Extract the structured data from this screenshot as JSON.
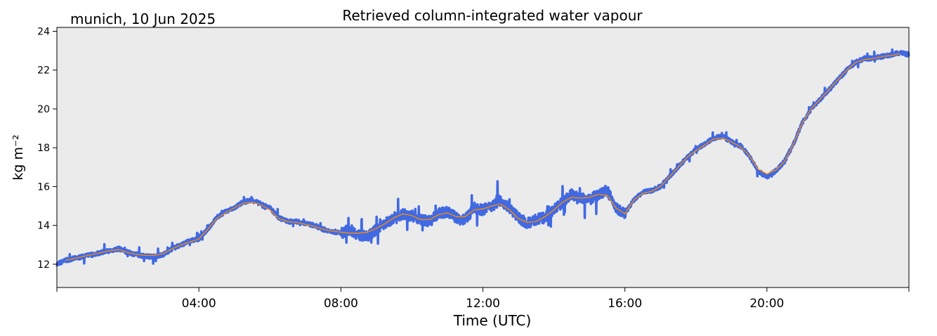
{
  "header": {
    "location_date": "munich, 10 Jun 2025",
    "title": "Retrieved column-integrated water vapour"
  },
  "colors": {
    "raw_series": "#4169e1",
    "smoothed_series": "#ff8c00",
    "plot_background": "#ebebeb"
  },
  "chart_data": {
    "type": "line",
    "title": "Retrieved column-integrated water vapour",
    "xlabel": "Time (UTC)",
    "ylabel": "kg m⁻²",
    "xlim": [
      0,
      24
    ],
    "ylim": [
      10.8,
      24.2
    ],
    "x_tick_labels": [
      "04:00",
      "08:00",
      "12:00",
      "16:00",
      "20:00"
    ],
    "x_tick_hours": [
      4,
      8,
      12,
      16,
      20
    ],
    "y_ticks": [
      12,
      14,
      16,
      18,
      20,
      22,
      24
    ],
    "grid": false,
    "series": [
      {
        "role": "raw retrieval",
        "x_hours": [
          0,
          0.25,
          0.5,
          0.75,
          1.0,
          1.25,
          1.5,
          1.75,
          2.0,
          2.25,
          2.5,
          2.75,
          3.0,
          3.25,
          3.5,
          3.75,
          4.0,
          4.25,
          4.5,
          4.75,
          5.0,
          5.25,
          5.5,
          5.75,
          6.0,
          6.25,
          6.5,
          6.75,
          7.0,
          7.25,
          7.5,
          7.75,
          8.0,
          8.25,
          8.5,
          8.75,
          9.0,
          9.25,
          9.5,
          9.75,
          10.0,
          10.25,
          10.5,
          10.75,
          11.0,
          11.25,
          11.5,
          11.75,
          12.0,
          12.25,
          12.5,
          12.75,
          13.0,
          13.25,
          13.5,
          13.75,
          14.0,
          14.25,
          14.5,
          14.75,
          15.0,
          15.25,
          15.5,
          15.75,
          16.0,
          16.25,
          16.5,
          16.75,
          17.0,
          17.25,
          17.5,
          17.75,
          18.0,
          18.25,
          18.5,
          18.75,
          19.0,
          19.25,
          19.5,
          19.75,
          20.0,
          20.25,
          20.5,
          20.75,
          21.0,
          21.25,
          21.5,
          21.75,
          22.0,
          22.25,
          22.5,
          22.75,
          23.0,
          23.25,
          23.5,
          23.75,
          24.0
        ],
        "values": [
          12.0,
          12.2,
          12.3,
          12.4,
          12.5,
          12.6,
          12.7,
          12.8,
          12.6,
          12.5,
          12.4,
          12.4,
          12.5,
          12.8,
          13.0,
          13.2,
          13.3,
          13.8,
          14.4,
          14.7,
          14.9,
          15.2,
          15.3,
          15.1,
          14.9,
          14.4,
          14.2,
          14.2,
          14.1,
          14.0,
          13.8,
          13.7,
          13.6,
          13.8,
          13.5,
          13.4,
          13.8,
          14.1,
          14.4,
          14.6,
          14.5,
          14.3,
          14.2,
          14.6,
          14.7,
          14.4,
          14.3,
          14.9,
          14.8,
          15.0,
          15.3,
          14.9,
          14.4,
          14.1,
          14.3,
          14.4,
          14.8,
          15.2,
          15.6,
          15.4,
          15.3,
          15.6,
          15.8,
          14.9,
          14.6,
          15.3,
          15.7,
          15.8,
          16.0,
          16.5,
          17.0,
          17.5,
          17.9,
          18.2,
          18.5,
          18.6,
          18.3,
          18.1,
          17.6,
          16.8,
          16.5,
          16.8,
          17.3,
          18.2,
          19.3,
          20.0,
          20.5,
          21.0,
          21.5,
          22.0,
          22.4,
          22.6,
          22.6,
          22.7,
          22.8,
          22.9,
          22.8
        ]
      },
      {
        "role": "smoothed",
        "x_hours": [
          0.25,
          0.5,
          0.75,
          1.0,
          1.25,
          1.5,
          1.75,
          2.0,
          2.25,
          2.5,
          2.75,
          3.0,
          3.25,
          3.5,
          3.75,
          4.0,
          4.25,
          4.5,
          4.75,
          5.0,
          5.25,
          5.5,
          5.75,
          6.0,
          6.25,
          6.5,
          6.75,
          7.0,
          7.25,
          7.5,
          7.75,
          8.0,
          8.25,
          8.5,
          8.75,
          9.0,
          9.25,
          9.5,
          9.75,
          10.0,
          10.25,
          10.5,
          10.75,
          11.0,
          11.25,
          11.5,
          11.75,
          12.0,
          12.25,
          12.5,
          12.75,
          13.0,
          13.25,
          13.5,
          13.75,
          14.0,
          14.25,
          14.5,
          14.75,
          15.0,
          15.25,
          15.5,
          15.75,
          16.0,
          16.25,
          16.5,
          16.75,
          17.0,
          17.25,
          17.5,
          17.75,
          18.0,
          18.25,
          18.5,
          18.75,
          19.0,
          19.25,
          19.5,
          19.75,
          20.0,
          20.25,
          20.5,
          20.75,
          21.0,
          21.25,
          21.5,
          21.75,
          22.0,
          22.25,
          22.5,
          22.75,
          23.0,
          23.25,
          23.5,
          23.75
        ],
        "values": [
          12.2,
          12.3,
          12.4,
          12.5,
          12.6,
          12.7,
          12.75,
          12.6,
          12.5,
          12.45,
          12.45,
          12.55,
          12.8,
          13.0,
          13.15,
          13.3,
          13.8,
          14.35,
          14.65,
          14.9,
          15.15,
          15.2,
          15.05,
          14.8,
          14.35,
          14.2,
          14.15,
          14.05,
          13.95,
          13.8,
          13.7,
          13.65,
          13.6,
          13.6,
          13.65,
          13.85,
          14.1,
          14.4,
          14.6,
          14.5,
          14.3,
          14.3,
          14.55,
          14.65,
          14.45,
          14.45,
          14.8,
          14.85,
          15.0,
          15.1,
          14.8,
          14.35,
          14.15,
          14.2,
          14.45,
          14.8,
          15.2,
          15.45,
          15.4,
          15.45,
          15.6,
          15.55,
          14.9,
          14.6,
          15.3,
          15.65,
          15.75,
          16.0,
          16.5,
          17.0,
          17.5,
          17.85,
          18.15,
          18.45,
          18.5,
          18.3,
          18.05,
          17.6,
          16.9,
          16.65,
          16.85,
          17.3,
          18.2,
          19.3,
          20.0,
          20.5,
          21.0,
          21.5,
          22.0,
          22.4,
          22.55,
          22.6,
          22.7,
          22.75,
          22.85
        ]
      }
    ]
  }
}
